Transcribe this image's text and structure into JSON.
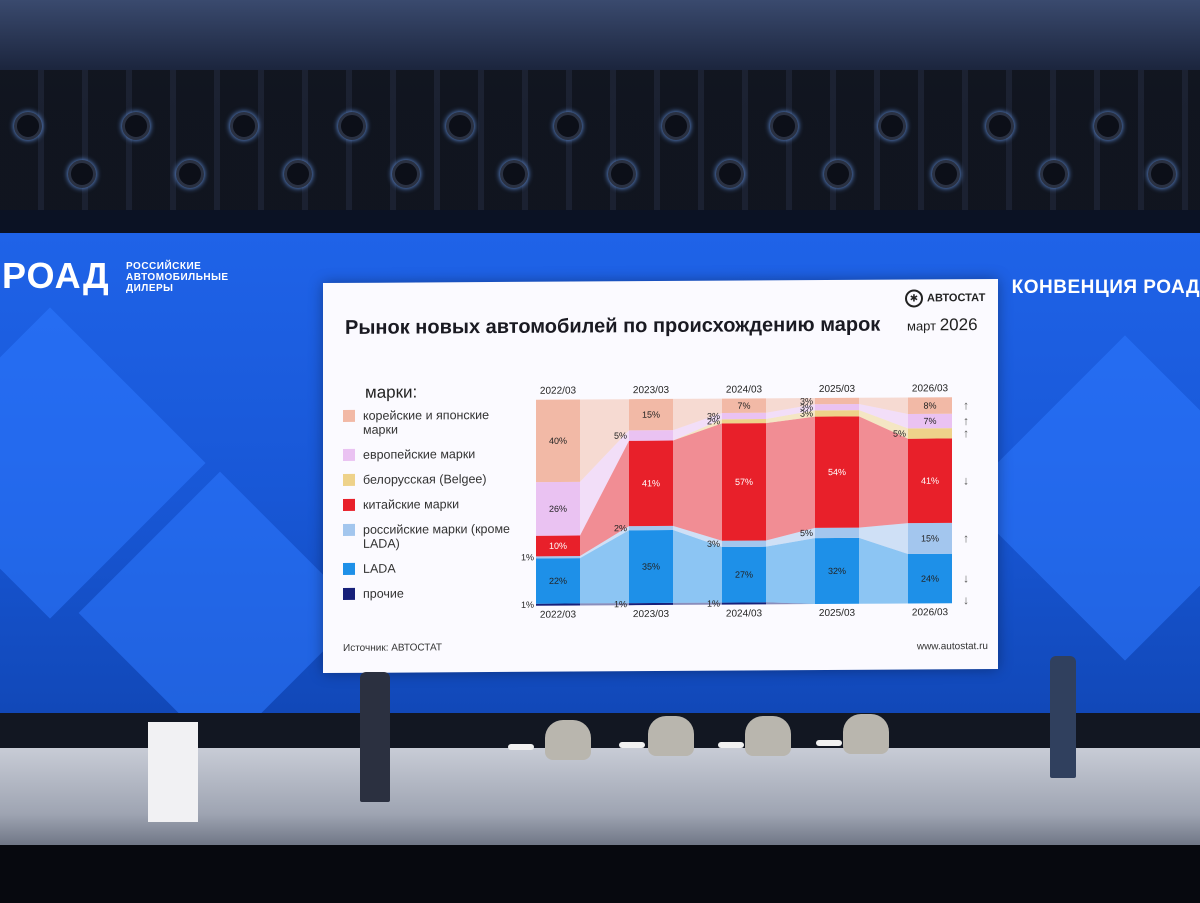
{
  "banner": {
    "logo": "РОАД",
    "logo_sub_1": "РОССИЙСКИЕ",
    "logo_sub_2": "АВТОМОБИЛЬНЫЕ",
    "logo_sub_3": "ДИЛЕРЫ",
    "convention": "КОНВЕНЦИЯ РОАД"
  },
  "slide": {
    "title": "Рынок новых автомобилей по происхождению марок",
    "brand": "АВТОСТАТ",
    "date_month": "март",
    "date_year": "2026",
    "source": "Источник: АВТОСТАТ",
    "url": "www.autostat.ru"
  },
  "colors": {
    "korean_japanese": "#f2b9a6",
    "european": "#eac2f2",
    "belarusian": "#eed28a",
    "chinese": "#e8202a",
    "russian": "#a3c6ee",
    "lada": "#1e90e8",
    "other": "#17207a"
  },
  "chart_data": {
    "type": "bar",
    "stacked": true,
    "legend_title": "марки:",
    "categories": [
      "2022/03",
      "2023/03",
      "2024/03",
      "2025/03",
      "2026/03"
    ],
    "series": [
      {
        "name": "прочие",
        "color": "#17207a",
        "values": [
          1,
          1,
          1,
          0,
          0
        ],
        "labels": [
          "1%",
          "1%",
          "1%",
          "",
          ""
        ]
      },
      {
        "name": "LADA",
        "color": "#1e90e8",
        "values": [
          22,
          35,
          27,
          32,
          24
        ],
        "labels": [
          "22%",
          "35%",
          "27%",
          "32%",
          "24%"
        ]
      },
      {
        "name": "российские марки (кроме LADA)",
        "color": "#a3c6ee",
        "values": [
          1,
          2,
          3,
          5,
          15
        ],
        "labels": [
          "1%",
          "2%",
          "3%",
          "5%",
          "15%"
        ]
      },
      {
        "name": "китайские марки",
        "color": "#e8202a",
        "values": [
          10,
          41,
          57,
          54,
          41
        ],
        "labels": [
          "10%",
          "41%",
          "57%",
          "54%",
          "41%"
        ]
      },
      {
        "name": "белорусская (Belgee)",
        "color": "#eed28a",
        "values": [
          0,
          0,
          2,
          3,
          5
        ],
        "labels": [
          "",
          "",
          "2%",
          "3%",
          "5%"
        ]
      },
      {
        "name": "европейские марки",
        "color": "#eac2f2",
        "values": [
          26,
          5,
          3,
          3,
          7
        ],
        "labels": [
          "26%",
          "5%",
          "3%",
          "3%",
          "7%"
        ]
      },
      {
        "name": "корейские и японские марки",
        "color": "#f2b9a6",
        "values": [
          40,
          15,
          7,
          3,
          8
        ],
        "labels": [
          "40%",
          "15%",
          "7%",
          "3%",
          "8%"
        ]
      }
    ],
    "trends_2026": [
      {
        "series": "корейские и японские марки",
        "direction": "up"
      },
      {
        "series": "европейские марки",
        "direction": "up"
      },
      {
        "series": "белорусская (Belgee)",
        "direction": "up"
      },
      {
        "series": "китайские марки",
        "direction": "down"
      },
      {
        "series": "российские марки (кроме LADA)",
        "direction": "up"
      },
      {
        "series": "LADA",
        "direction": "down"
      },
      {
        "series": "прочие",
        "direction": "down"
      }
    ],
    "ylim": [
      0,
      100
    ],
    "legend_position": "left"
  }
}
